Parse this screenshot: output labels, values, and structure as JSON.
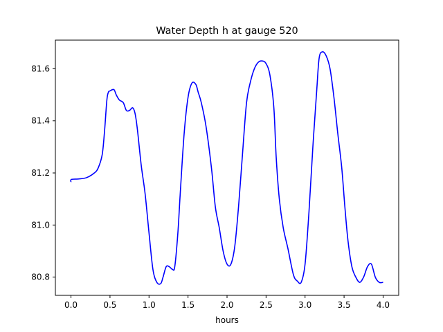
{
  "chart_data": {
    "type": "line",
    "title": "Water Depth h at gauge 520",
    "xlabel": "hours",
    "ylabel": "",
    "xlim": [
      -0.2,
      4.2
    ],
    "ylim": [
      80.73,
      81.71
    ],
    "xticks": [
      0.0,
      0.5,
      1.0,
      1.5,
      2.0,
      2.5,
      3.0,
      3.5,
      4.0
    ],
    "xtick_labels": [
      "0.0",
      "0.5",
      "1.0",
      "1.5",
      "2.0",
      "2.5",
      "3.0",
      "3.5",
      "4.0"
    ],
    "yticks": [
      80.8,
      81.0,
      81.2,
      81.4,
      81.6
    ],
    "ytick_labels": [
      "80.8",
      "81.0",
      "81.2",
      "81.4",
      "81.6"
    ],
    "grid": false,
    "legend": "none",
    "series": [
      {
        "color": "#0000ff",
        "x": [
          0.0,
          0.005,
          0.1,
          0.2,
          0.3,
          0.35,
          0.4,
          0.43,
          0.46,
          0.48,
          0.5,
          0.55,
          0.58,
          0.62,
          0.67,
          0.71,
          0.75,
          0.79,
          0.82,
          0.85,
          0.9,
          0.95,
          1.0,
          1.05,
          1.1,
          1.15,
          1.18,
          1.22,
          1.26,
          1.3,
          1.33,
          1.37,
          1.4,
          1.45,
          1.5,
          1.55,
          1.6,
          1.63,
          1.67,
          1.73,
          1.8,
          1.85,
          1.9,
          1.95,
          2.0,
          2.05,
          2.1,
          2.15,
          2.2,
          2.25,
          2.3,
          2.35,
          2.4,
          2.45,
          2.5,
          2.55,
          2.6,
          2.63,
          2.67,
          2.72,
          2.78,
          2.85,
          2.9,
          2.95,
          3.0,
          3.05,
          3.1,
          3.15,
          3.18,
          3.22,
          3.27,
          3.32,
          3.37,
          3.42,
          3.47,
          3.51,
          3.55,
          3.6,
          3.65,
          3.7,
          3.75,
          3.8,
          3.85,
          3.9,
          3.95,
          4.0
        ],
        "y": [
          81.165,
          81.175,
          81.177,
          81.182,
          81.2,
          81.22,
          81.27,
          81.36,
          81.48,
          81.51,
          81.515,
          81.52,
          81.5,
          81.48,
          81.47,
          81.44,
          81.44,
          81.45,
          81.43,
          81.37,
          81.23,
          81.12,
          80.97,
          80.83,
          80.78,
          80.775,
          80.8,
          80.84,
          80.84,
          80.83,
          80.84,
          80.97,
          81.12,
          81.35,
          81.49,
          81.545,
          81.54,
          81.51,
          81.47,
          81.38,
          81.22,
          81.07,
          80.99,
          80.9,
          80.85,
          80.85,
          80.92,
          81.08,
          81.28,
          81.47,
          81.55,
          81.6,
          81.625,
          81.63,
          81.62,
          81.575,
          81.45,
          81.26,
          81.1,
          80.99,
          80.91,
          80.81,
          80.785,
          80.78,
          80.85,
          81.05,
          81.3,
          81.52,
          81.64,
          81.665,
          81.65,
          81.6,
          81.49,
          81.35,
          81.22,
          81.07,
          80.94,
          80.84,
          80.8,
          80.78,
          80.8,
          80.84,
          80.85,
          80.8,
          80.78,
          80.78
        ]
      }
    ]
  }
}
